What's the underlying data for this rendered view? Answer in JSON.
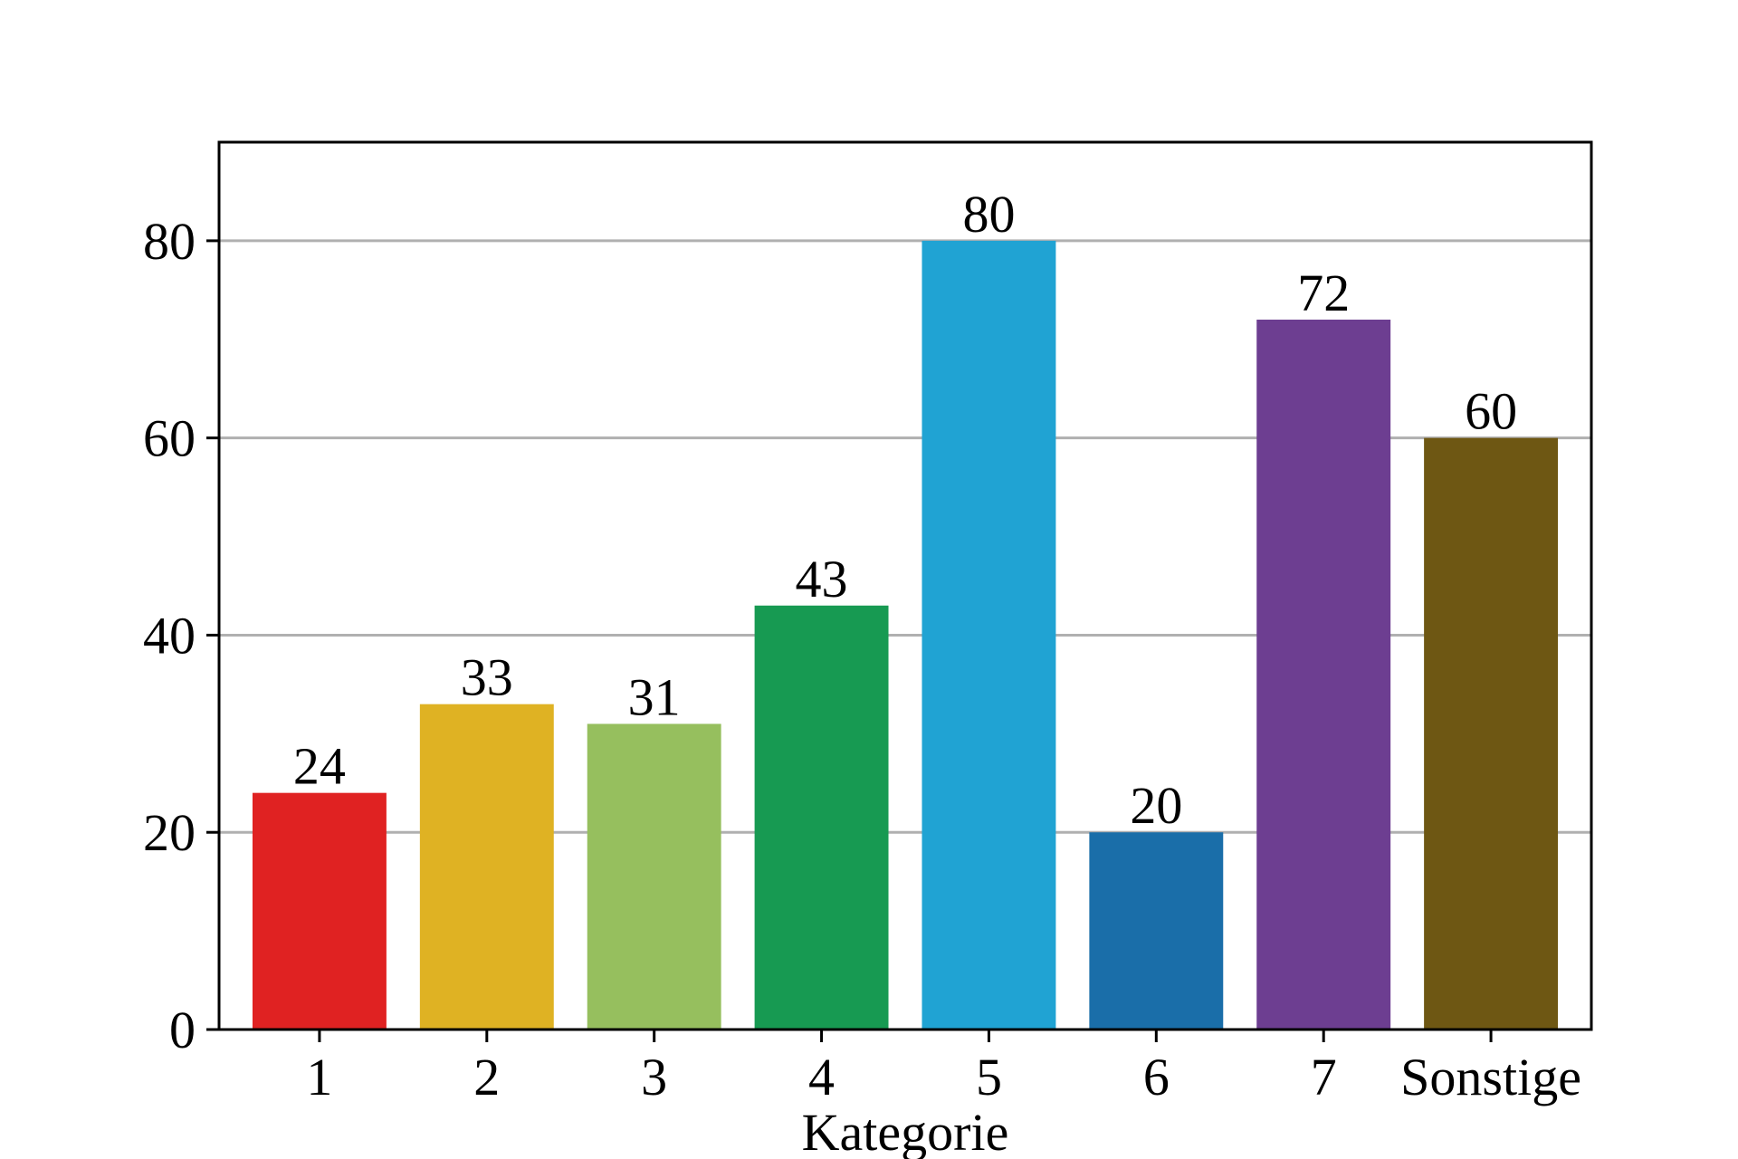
{
  "chart_data": {
    "type": "bar",
    "xlabel": "Kategorie",
    "ylabel": "",
    "categories": [
      "1",
      "2",
      "3",
      "4",
      "5",
      "6",
      "7",
      "Sonstige"
    ],
    "values": [
      24,
      33,
      31,
      43,
      80,
      20,
      72,
      60
    ],
    "data_labels": [
      "24",
      "33",
      "31",
      "43",
      "80",
      "20",
      "72",
      "60"
    ],
    "colors": [
      "#e02222",
      "#dfb223",
      "#96bf5e",
      "#179a52",
      "#20a3d3",
      "#1a6ea9",
      "#6d3e91",
      "#6e5713"
    ],
    "ylim": [
      0,
      90
    ],
    "yticks": [
      0,
      20,
      40,
      60,
      80
    ],
    "ytick_labels": [
      "0",
      "20",
      "40",
      "60",
      "80"
    ],
    "grid": true,
    "grid_axis": "y",
    "grid_color": "#b0b0b0",
    "legend": "none"
  }
}
